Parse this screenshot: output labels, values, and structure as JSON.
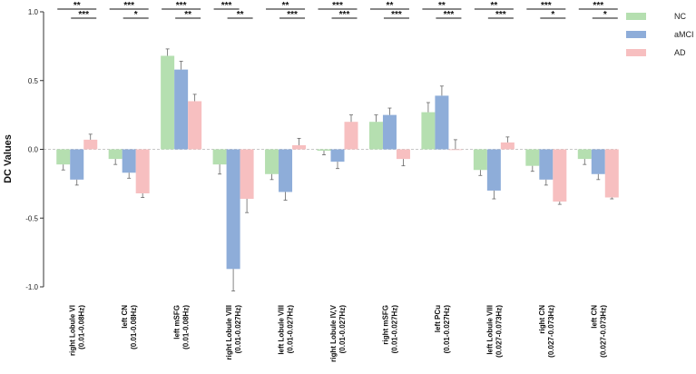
{
  "chart_data": {
    "type": "bar",
    "ylabel": "DC Values",
    "ylim": [
      -1.0,
      1.0
    ],
    "yticks": [
      1.0,
      0.5,
      0.0,
      -0.5,
      -1.0
    ],
    "ytick_labels": [
      "1.0",
      "0.5",
      "0.0",
      "-0.5",
      "-1.0"
    ],
    "legend_position": "top-right",
    "series": [
      {
        "name": "NC",
        "color": "#b5dfb0",
        "values": [
          -0.11,
          -0.07,
          0.68,
          -0.11,
          -0.18,
          -0.01,
          0.2,
          0.27,
          -0.15,
          -0.12,
          -0.07
        ],
        "errors": [
          0.04,
          0.04,
          0.05,
          0.07,
          0.04,
          0.03,
          0.05,
          0.07,
          0.04,
          0.04,
          0.04
        ]
      },
      {
        "name": "aMCI",
        "color": "#8eadd9",
        "values": [
          -0.22,
          -0.17,
          0.58,
          -0.87,
          -0.31,
          -0.09,
          0.25,
          0.39,
          -0.3,
          -0.22,
          -0.18
        ],
        "errors": [
          0.04,
          0.04,
          0.06,
          0.16,
          0.06,
          0.05,
          0.05,
          0.07,
          0.06,
          0.04,
          0.04
        ]
      },
      {
        "name": "AD",
        "color": "#f7bfc0",
        "values": [
          0.07,
          -0.32,
          0.35,
          -0.36,
          0.03,
          0.2,
          -0.07,
          0.0,
          0.05,
          -0.38,
          -0.35
        ],
        "errors": [
          0.04,
          0.03,
          0.05,
          0.1,
          0.05,
          0.05,
          0.05,
          0.07,
          0.04,
          0.02,
          0.01
        ]
      }
    ],
    "categories": [
      {
        "line1": "right Lobule VI",
        "line2": "(0.01-0.08Hz)"
      },
      {
        "line1": "left CN",
        "line2": "(0.01-0.08Hz)"
      },
      {
        "line1": "left mSFG",
        "line2": "(0.01-0.08Hz)"
      },
      {
        "line1": "right Lobule VIII",
        "line2": "(0.01-0.027Hz)"
      },
      {
        "line1": "left Lobule VIII",
        "line2": "(0.01-0.027Hz)"
      },
      {
        "line1": "right Lobule IV,V",
        "line2": "(0.01-0.027Hz)"
      },
      {
        "line1": "right mSFG",
        "line2": "(0.01-0.027Hz)"
      },
      {
        "line1": "left PCu",
        "line2": "(0.01-0.027Hz)"
      },
      {
        "line1": "left Lobule VIII",
        "line2": "(0.027-0.073Hz)"
      },
      {
        "line1": "right CN",
        "line2": "(0.027-0.073Hz)"
      },
      {
        "line1": "left CN",
        "line2": "(0.027-0.073Hz)"
      }
    ],
    "significance": [
      {
        "category": 0,
        "pairs": [
          {
            "groups": "NC-AD",
            "label": "**"
          },
          {
            "groups": "aMCI-AD",
            "label": "***"
          }
        ]
      },
      {
        "category": 1,
        "pairs": [
          {
            "groups": "NC-AD",
            "label": "***"
          },
          {
            "groups": "aMCI-AD",
            "label": "*"
          }
        ]
      },
      {
        "category": 2,
        "pairs": [
          {
            "groups": "NC-AD",
            "label": "***"
          },
          {
            "groups": "aMCI-AD",
            "label": "**"
          }
        ]
      },
      {
        "category": 3,
        "pairs": [
          {
            "groups": "NC-aMCI",
            "label": "***"
          },
          {
            "groups": "aMCI-AD",
            "label": "**"
          }
        ]
      },
      {
        "category": 4,
        "pairs": [
          {
            "groups": "NC-AD",
            "label": "**"
          },
          {
            "groups": "aMCI-AD",
            "label": "***"
          }
        ]
      },
      {
        "category": 5,
        "pairs": [
          {
            "groups": "NC-AD",
            "label": "***"
          },
          {
            "groups": "aMCI-AD",
            "label": "***"
          }
        ]
      },
      {
        "category": 6,
        "pairs": [
          {
            "groups": "NC-AD",
            "label": "**"
          },
          {
            "groups": "aMCI-AD",
            "label": "***"
          }
        ]
      },
      {
        "category": 7,
        "pairs": [
          {
            "groups": "NC-AD",
            "label": "**"
          },
          {
            "groups": "aMCI-AD",
            "label": "***"
          }
        ]
      },
      {
        "category": 8,
        "pairs": [
          {
            "groups": "NC-AD",
            "label": "**"
          },
          {
            "groups": "aMCI-AD",
            "label": "***"
          }
        ]
      },
      {
        "category": 9,
        "pairs": [
          {
            "groups": "NC-AD",
            "label": "***"
          },
          {
            "groups": "aMCI-AD",
            "label": "*"
          }
        ]
      },
      {
        "category": 10,
        "pairs": [
          {
            "groups": "NC-AD",
            "label": "***"
          },
          {
            "groups": "aMCI-AD",
            "label": "*"
          }
        ]
      }
    ]
  }
}
